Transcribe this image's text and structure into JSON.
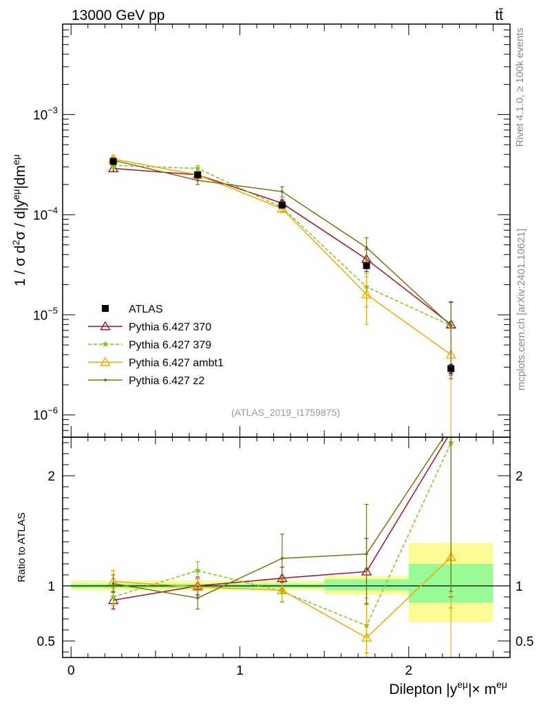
{
  "header": {
    "energy_label": "13000 GeV pp",
    "process_label": "tt̄"
  },
  "side_labels": {
    "rivet": "Rivet 4.1.0, ≥ 100k events",
    "mcplots": "mcplots.cern.ch [arXiv:2401.10621]"
  },
  "analysis_id": "(ATLAS_2019_I1759875)",
  "colors": {
    "data": "#000000",
    "p370": "#a0122a",
    "p379": "#7ec51a",
    "ambt1": "#f2a900",
    "z2": "#7a7010",
    "band_inner": "#99fb96",
    "band_outer": "#fcfb96"
  },
  "chart_data": [
    {
      "type": "line",
      "panel": "main",
      "ylabel": "1 / σ  d²σ / d|y^eμ|dm^eμ",
      "yscale": "log",
      "xlim": [
        -0.05,
        2.6
      ],
      "ylim": [
        6e-07,
        0.008
      ],
      "y_ticks": [
        {
          "value": 1e-06,
          "base": "10",
          "exp": "−6"
        },
        {
          "value": 1e-05,
          "base": "10",
          "exp": "−5"
        },
        {
          "value": 0.0001,
          "base": "10",
          "exp": "−4"
        },
        {
          "value": 0.001,
          "base": "10",
          "exp": "−3"
        }
      ],
      "x": [
        0.25,
        0.75,
        1.25,
        1.75,
        2.25
      ],
      "bins": [
        [
          0,
          0.5
        ],
        [
          0.5,
          1.0
        ],
        [
          1.0,
          1.5
        ],
        [
          1.5,
          2.0
        ],
        [
          2.0,
          2.5
        ]
      ],
      "legend_position": "lower-left",
      "series": [
        {
          "key": "data",
          "name": "ATLAS",
          "marker": "square",
          "style": "points",
          "values": [
            0.00034,
            0.00025,
            0.000125,
            3.1e-05,
            2.9e-06
          ],
          "err": [
            1.2e-05,
            9e-06,
            4e-06,
            1.5e-06,
            3e-07
          ]
        },
        {
          "key": "p370",
          "name": "Pythia 6.427 370",
          "marker": "triangle-open",
          "style": "solid",
          "values": [
            0.00029,
            0.00025,
            0.00013,
            3.6e-05,
            8e-06
          ],
          "err": [
            2e-05,
            2e-05,
            1e-05,
            9e-06,
            5.5e-06
          ]
        },
        {
          "key": "p379",
          "name": "Pythia 6.427 379",
          "marker": "star",
          "style": "dashed",
          "values": [
            0.00031,
            0.00029,
            0.000118,
            1.9e-05,
            7.8e-06
          ],
          "err": [
            2e-05,
            2e-05,
            1e-05,
            7e-06,
            5.5e-06
          ]
        },
        {
          "key": "ambt1",
          "name": "Pythia 6.427 ambt1",
          "marker": "triangle-open",
          "style": "solid",
          "values": [
            0.00036,
            0.00025,
            0.000115,
            1.6e-05,
            4e-06
          ],
          "err": [
            2.5e-05,
            2e-05,
            1e-05,
            8e-06,
            3.5e-06
          ]
        },
        {
          "key": "z2",
          "name": "Pythia 6.427 z2",
          "marker": "dot",
          "style": "solid",
          "values": [
            0.00035,
            0.00022,
            0.00017,
            4.7e-05,
            7.8e-06
          ],
          "err": [
            2e-05,
            2e-05,
            2e-05,
            1.2e-05,
            5.5e-06
          ]
        }
      ]
    },
    {
      "type": "line",
      "panel": "ratio",
      "ylabel": "Ratio to ATLAS",
      "xlabel": "Dilepton |y^eμ|× m^eμ",
      "xlim": [
        -0.05,
        2.6
      ],
      "ylim": [
        0.35,
        2.35
      ],
      "x_ticks": [
        "0",
        "1",
        "2"
      ],
      "x_tick_values": [
        0,
        1,
        2
      ],
      "y_ticks": [
        "0.5",
        "1",
        "2"
      ],
      "y_tick_values": [
        0.5,
        1,
        2
      ],
      "reference_line": 1.0,
      "bands": [
        {
          "x": [
            0,
            0.5
          ],
          "inner": [
            0.98,
            1.02
          ],
          "outer": [
            0.96,
            1.05
          ]
        },
        {
          "x": [
            0.5,
            1.0
          ],
          "inner": [
            0.98,
            1.02
          ],
          "outer": [
            0.96,
            1.05
          ]
        },
        {
          "x": [
            1.0,
            1.5
          ],
          "inner": [
            0.98,
            1.02
          ],
          "outer": [
            0.96,
            1.05
          ]
        },
        {
          "x": [
            1.5,
            2.0
          ],
          "inner": [
            0.96,
            1.06
          ],
          "outer": [
            0.92,
            1.09
          ]
        },
        {
          "x": [
            2.0,
            2.5
          ],
          "inner": [
            0.85,
            1.2
          ],
          "outer": [
            0.67,
            1.39
          ]
        }
      ],
      "series": [
        {
          "key": "p370",
          "name": "Pythia 6.427 370",
          "marker": "triangle-open",
          "style": "solid",
          "values": [
            0.87,
            1.0,
            1.07,
            1.13,
            2.4
          ],
          "err": [
            0.08,
            0.08,
            0.1,
            0.3,
            1.5
          ]
        },
        {
          "key": "p379",
          "name": "Pythia 6.427 379",
          "marker": "star",
          "style": "dashed",
          "values": [
            0.9,
            1.14,
            0.95,
            0.64,
            2.3
          ],
          "err": [
            0.08,
            0.08,
            0.1,
            0.25,
            1.5
          ]
        },
        {
          "key": "ambt1",
          "name": "Pythia 6.427 ambt1",
          "marker": "triangle-open",
          "style": "solid",
          "values": [
            1.04,
            0.99,
            0.96,
            0.53,
            1.26
          ],
          "err": [
            0.1,
            0.08,
            0.1,
            0.3,
            1.2
          ]
        },
        {
          "key": "z2",
          "name": "Pythia 6.427 z2",
          "marker": "dot",
          "style": "solid",
          "values": [
            1.02,
            0.89,
            1.25,
            1.29,
            2.45
          ],
          "err": [
            0.08,
            0.1,
            0.22,
            0.45,
            1.5
          ]
        }
      ]
    }
  ]
}
